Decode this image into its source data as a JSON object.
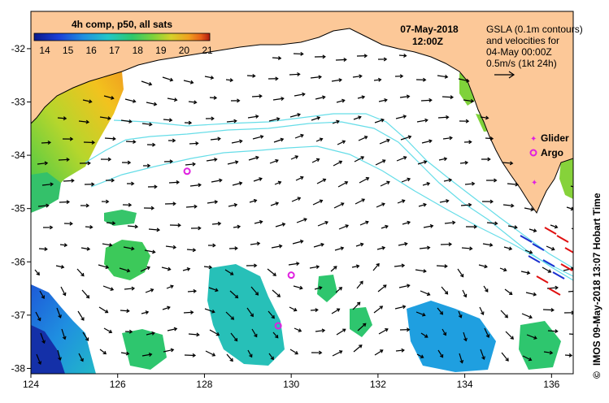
{
  "header": {
    "date": "07-May-2018",
    "time": "12:00Z"
  },
  "colorbar": {
    "title": "4h comp, p50, all sats",
    "ticks": [
      "14",
      "15",
      "16",
      "17",
      "18",
      "19",
      "20",
      "21"
    ],
    "colors": [
      "#0b1a8a",
      "#1a3fd8",
      "#1f8fe0",
      "#22c6c8",
      "#2fc86a",
      "#7fd23a",
      "#d6d12a",
      "#f0a020",
      "#e8601a",
      "#b01a10"
    ]
  },
  "legend": {
    "gsla_line1": "GSLA (0.1m contours)",
    "gsla_line2": "and velocities for",
    "gsla_line3": "04-May 00:00Z",
    "scale": "0.5m/s (1kt 24h)",
    "glider": "Glider",
    "argo": "Argo"
  },
  "credit": "IMOS 09-May-2018 13:07 Hobart Time",
  "copyright": "©",
  "axes": {
    "x_ticks": [
      "124",
      "126",
      "128",
      "130",
      "132",
      "134",
      "136"
    ],
    "y_ticks": [
      "-32",
      "-33",
      "-34",
      "-35",
      "-36",
      "-37",
      "-38"
    ],
    "lon_range": [
      124,
      136.5
    ],
    "lat_range": [
      -38.1,
      -31.3
    ]
  },
  "markers": {
    "argo": [
      {
        "lon": 127.6,
        "lat": -34.3
      },
      {
        "lon": 130.0,
        "lat": -36.25
      },
      {
        "lon": 129.7,
        "lat": -37.2
      }
    ],
    "glider": [
      {
        "lon": 135.6,
        "lat": -34.5
      }
    ]
  },
  "colors": {
    "land": "#fcc898",
    "contour": "#66dde8",
    "argo": "#e020e0",
    "vector": "#000000"
  }
}
